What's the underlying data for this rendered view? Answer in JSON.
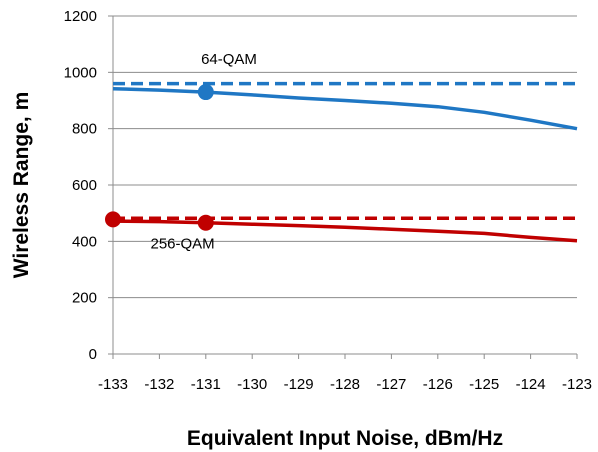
{
  "chart_data": {
    "type": "line",
    "xlabel": "Equivalent Input Noise, dBm/Hz",
    "ylabel": "Wireless Range, m",
    "xlim": [
      -133,
      -123
    ],
    "ylim": [
      0,
      1200
    ],
    "x_ticks": [
      -133,
      -132,
      -131,
      -130,
      -129,
      -128,
      -127,
      -126,
      -125,
      -124,
      -123
    ],
    "y_ticks": [
      0,
      200,
      400,
      600,
      800,
      1000,
      1200
    ],
    "grid": "horizontal",
    "legend": "none",
    "series": [
      {
        "color": "#1f77c4",
        "style": "solid",
        "x": [
          -133,
          -132,
          -131,
          -130,
          -129,
          -128,
          -127,
          -126,
          -125,
          -124,
          -123
        ],
        "y": [
          942,
          937,
          930,
          920,
          909,
          900,
          890,
          878,
          858,
          830,
          800
        ]
      },
      {
        "color": "#1f77c4",
        "style": "dashed",
        "x": [
          -133,
          -123
        ],
        "y": [
          960,
          960
        ]
      },
      {
        "color": "#c00000",
        "style": "solid",
        "x": [
          -133,
          -132,
          -131,
          -130,
          -129,
          -128,
          -127,
          -126,
          -125,
          -124,
          -123
        ],
        "y": [
          472,
          470,
          466,
          461,
          456,
          450,
          443,
          436,
          428,
          414,
          402
        ]
      },
      {
        "color": "#c00000",
        "style": "dashed",
        "x": [
          -133,
          -123
        ],
        "y": [
          482,
          482
        ]
      }
    ],
    "markers": [
      {
        "x": -131,
        "y": 930,
        "color": "#1f77c4"
      },
      {
        "x": -131,
        "y": 466,
        "color": "#c00000"
      },
      {
        "x": -133,
        "y": 478,
        "color": "#c00000"
      }
    ],
    "annotations": [
      {
        "text": "64-QAM",
        "x": -130.5,
        "y": 1030
      },
      {
        "text": "256-QAM",
        "x": -131.5,
        "y": 375
      }
    ]
  }
}
